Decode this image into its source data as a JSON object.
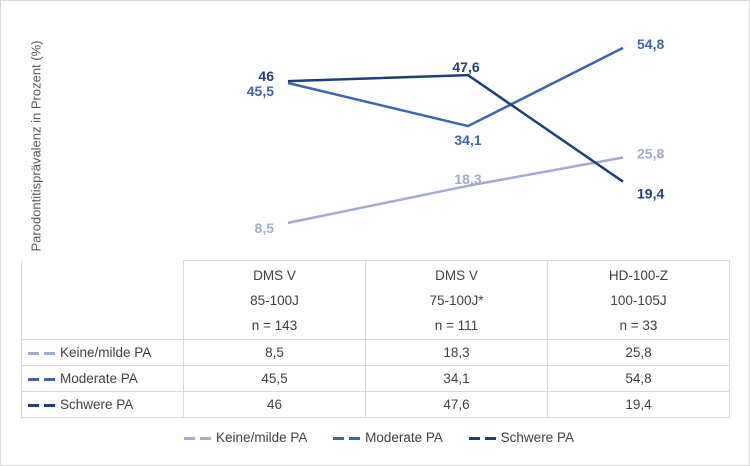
{
  "chart_data": {
    "type": "line",
    "title": "",
    "ylabel": "Parodontitisprävalenz in Prozent (%)",
    "xlabel": "",
    "categories": [
      {
        "study": "DMS V",
        "age": "85-100J",
        "n": "n = 143"
      },
      {
        "study": "DMS V",
        "age": "75-100J*",
        "n": "n = 111"
      },
      {
        "study": "HD-100-Z",
        "age": "100-105J",
        "n": "n = 33"
      }
    ],
    "series": [
      {
        "name": "Keine/milde PA",
        "color": "#a2aace",
        "values": [
          8.5,
          18.3,
          25.8
        ],
        "labels": [
          "8,5",
          "18,3",
          "25,8"
        ]
      },
      {
        "name": "Moderate PA",
        "color": "#3d64ae",
        "values": [
          45.5,
          34.1,
          54.8
        ],
        "labels": [
          "45,5",
          "34,1",
          "54,8"
        ]
      },
      {
        "name": "Schwere PA",
        "color": "#203f7b",
        "values": [
          46,
          47.6,
          19.4
        ],
        "labels": [
          "46",
          "47,6",
          "19,4"
        ]
      }
    ],
    "ylim": [
      0,
      60
    ],
    "grid": false,
    "legend": "bottom",
    "data_table": true
  }
}
